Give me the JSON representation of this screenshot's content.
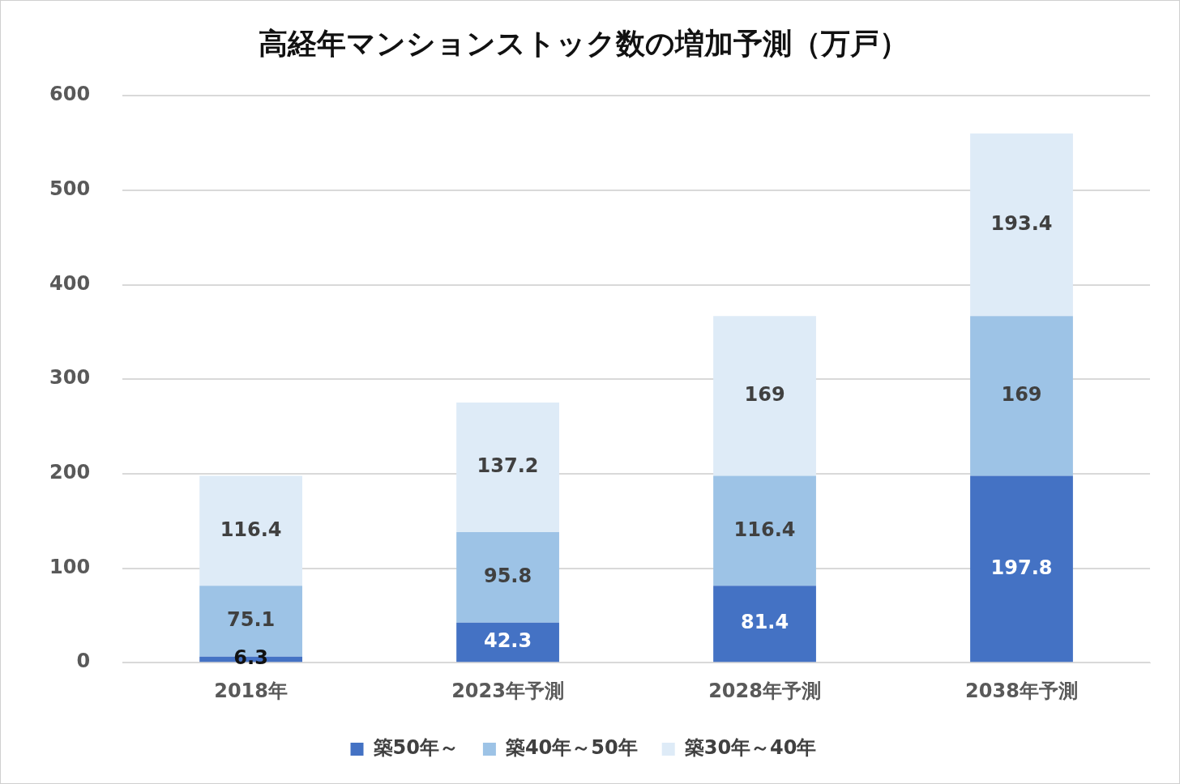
{
  "chart_data": {
    "type": "bar",
    "title": "高経年マンションストック数の増加予測（万戸）",
    "categories": [
      "2018年",
      "2023年予測",
      "2028年予測",
      "2038年予測"
    ],
    "series": [
      {
        "name": "築50年～",
        "color": "#4472c4",
        "values": [
          6.3,
          42.3,
          81.4,
          197.8
        ]
      },
      {
        "name": "築40年～50年",
        "color": "#9dc3e6",
        "values": [
          75.1,
          95.8,
          116.4,
          169
        ]
      },
      {
        "name": "築30年～40年",
        "color": "#deebf7",
        "values": [
          116.4,
          137.2,
          169,
          193.4
        ]
      }
    ],
    "ylim": [
      0,
      600
    ],
    "yticks": [
      0,
      100,
      200,
      300,
      400,
      500,
      600
    ],
    "grid": true,
    "stacked": true,
    "data_labels": true,
    "legend": "bottom"
  }
}
